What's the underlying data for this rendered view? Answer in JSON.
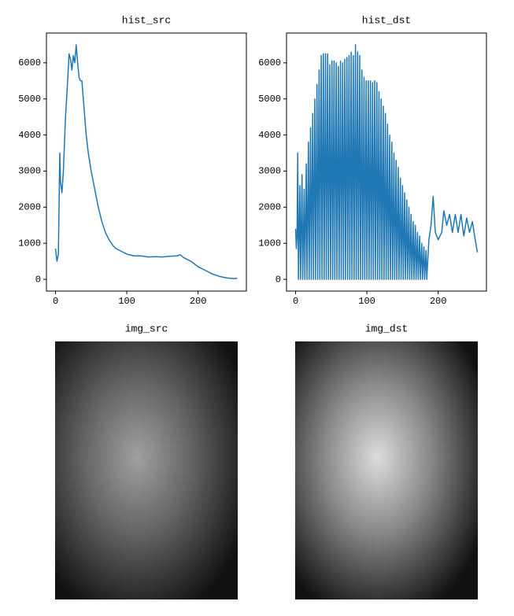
{
  "chart_data": [
    {
      "type": "line",
      "title": "hist_src",
      "color": "#1f77b4",
      "x": [
        0,
        2,
        4,
        6,
        7,
        9,
        11,
        14,
        17,
        19,
        21,
        23,
        25,
        27,
        29,
        31,
        33,
        35,
        37,
        39,
        41,
        43,
        46,
        50,
        55,
        60,
        65,
        70,
        75,
        80,
        85,
        90,
        95,
        100,
        110,
        120,
        130,
        140,
        150,
        160,
        170,
        175,
        180,
        190,
        200,
        210,
        220,
        230,
        240,
        250,
        255
      ],
      "values": [
        850,
        500,
        700,
        3500,
        2700,
        2400,
        3000,
        4500,
        5500,
        6250,
        6100,
        5800,
        6200,
        6000,
        6500,
        6000,
        5600,
        5500,
        5500,
        5000,
        4500,
        4000,
        3500,
        3000,
        2500,
        2000,
        1600,
        1300,
        1100,
        950,
        850,
        800,
        750,
        700,
        650,
        650,
        620,
        630,
        620,
        640,
        650,
        680,
        600,
        500,
        350,
        250,
        150,
        80,
        40,
        20,
        30
      ],
      "xlim": [
        -12.75,
        267.75
      ],
      "ylim": [
        -325,
        6825
      ],
      "xticks": [
        0,
        100,
        200
      ],
      "yticks": [
        0,
        1000,
        2000,
        3000,
        4000,
        5000,
        6000
      ]
    },
    {
      "type": "line",
      "title": "hist_dst",
      "color": "#1f77b4",
      "x": [
        0,
        1,
        2,
        3,
        4,
        6,
        7,
        9,
        10,
        12,
        13,
        15,
        16,
        18,
        19,
        21,
        22,
        24,
        25,
        27,
        28,
        30,
        31,
        33,
        34,
        36,
        37,
        39,
        40,
        42,
        43,
        45,
        46,
        48,
        49,
        51,
        52,
        54,
        55,
        57,
        58,
        60,
        61,
        63,
        64,
        66,
        67,
        69,
        70,
        72,
        73,
        75,
        76,
        78,
        79,
        81,
        82,
        84,
        85,
        87,
        88,
        90,
        91,
        93,
        94,
        96,
        97,
        99,
        100,
        102,
        103,
        105,
        106,
        108,
        109,
        111,
        112,
        114,
        115,
        117,
        118,
        120,
        121,
        123,
        124,
        126,
        127,
        129,
        130,
        132,
        133,
        135,
        136,
        138,
        139,
        141,
        142,
        144,
        145,
        147,
        148,
        150,
        151,
        153,
        154,
        156,
        157,
        159,
        160,
        162,
        163,
        165,
        166,
        168,
        169,
        171,
        172,
        174,
        175,
        177,
        178,
        180,
        181,
        183,
        184,
        187,
        190,
        193,
        196,
        200,
        205,
        208,
        212,
        216,
        220,
        224,
        228,
        232,
        236,
        240,
        244,
        248,
        252,
        255
      ],
      "values": [
        1400,
        850,
        1200,
        3500,
        0,
        2600,
        0,
        2900,
        0,
        2500,
        0,
        3200,
        0,
        3800,
        0,
        4200,
        0,
        4600,
        0,
        5000,
        0,
        5400,
        0,
        5800,
        0,
        6200,
        0,
        6250,
        0,
        6250,
        0,
        6250,
        0,
        5950,
        0,
        6050,
        0,
        6050,
        0,
        6000,
        0,
        5900,
        0,
        6050,
        0,
        6000,
        0,
        6100,
        0,
        6150,
        0,
        6200,
        0,
        6300,
        0,
        6200,
        0,
        6500,
        0,
        6300,
        0,
        6200,
        0,
        5800,
        0,
        5600,
        0,
        5500,
        0,
        5500,
        0,
        5500,
        0,
        5450,
        0,
        5500,
        0,
        5450,
        0,
        5200,
        0,
        5000,
        0,
        4800,
        0,
        4600,
        0,
        4300,
        0,
        4000,
        0,
        3800,
        0,
        3500,
        0,
        3300,
        0,
        3100,
        0,
        2800,
        0,
        2600,
        0,
        2400,
        0,
        2200,
        0,
        2000,
        0,
        1800,
        0,
        1600,
        0,
        1500,
        0,
        1300,
        0,
        1200,
        0,
        1000,
        0,
        900,
        0,
        800,
        0,
        1100,
        1500,
        2300,
        1300,
        1100,
        1300,
        1900,
        1500,
        1800,
        1300,
        1800,
        1300,
        1800,
        1200,
        1700,
        1300,
        1600,
        1100,
        750
      ],
      "xlim": [
        -12.75,
        267.75
      ],
      "ylim": [
        -325,
        6825
      ],
      "xticks": [
        0,
        100,
        200
      ],
      "yticks": [
        0,
        1000,
        2000,
        3000,
        4000,
        5000,
        6000
      ]
    },
    {
      "type": "image",
      "title": "img_src",
      "brightness": 0.7
    },
    {
      "type": "image",
      "title": "img_dst",
      "brightness": 1.0
    }
  ]
}
